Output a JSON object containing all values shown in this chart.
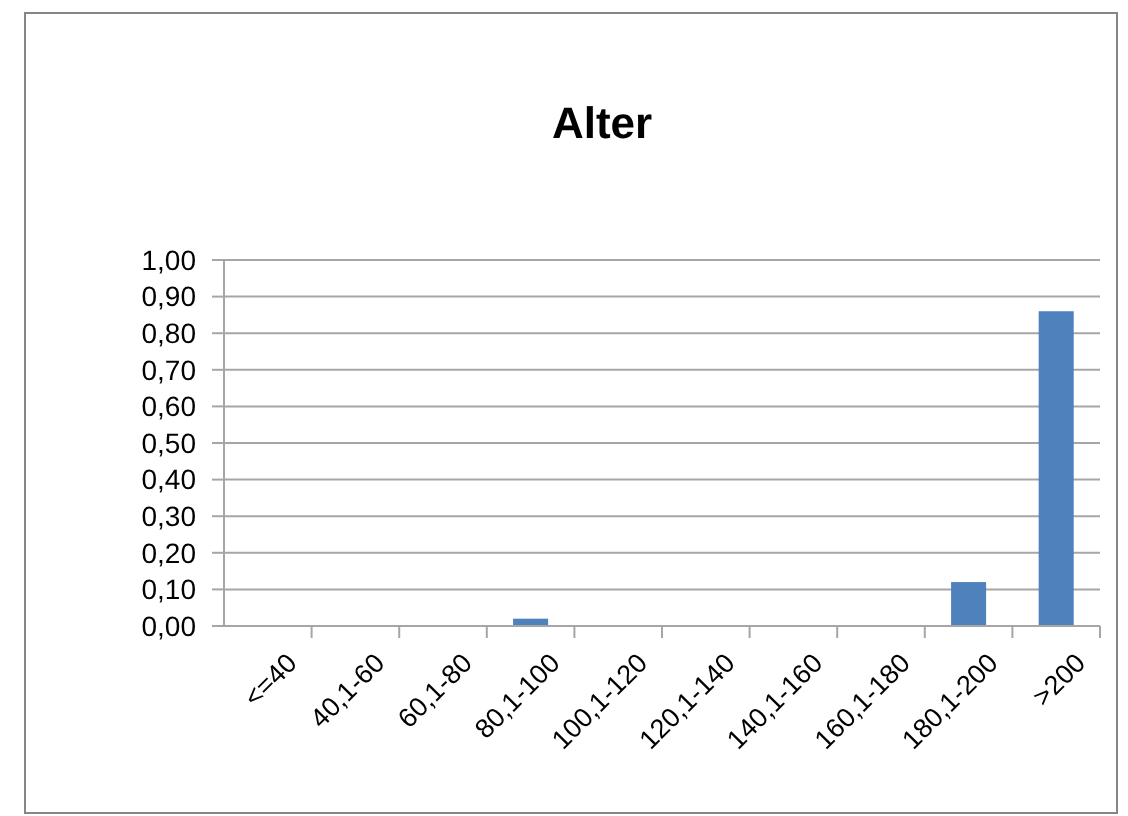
{
  "chart_data": {
    "type": "bar",
    "title": "Alter",
    "categories": [
      "<=40",
      "40,1-60",
      "60,1-80",
      "80,1-100",
      "100,1-120",
      "120,1-140",
      "140,1-160",
      "160,1-180",
      "180,1-200",
      ">200"
    ],
    "values": [
      0,
      0,
      0,
      0.02,
      0,
      0,
      0,
      0,
      0.12,
      0.86
    ],
    "color": "#4f81bd",
    "ylim": [
      0,
      1
    ],
    "yticks": [
      {
        "value": 0,
        "label": "0,00"
      },
      {
        "value": 0.1,
        "label": "0,10"
      },
      {
        "value": 0.2,
        "label": "0,20"
      },
      {
        "value": 0.3,
        "label": "0,30"
      },
      {
        "value": 0.4,
        "label": "0,40"
      },
      {
        "value": 0.5,
        "label": "0,50"
      },
      {
        "value": 0.6,
        "label": "0,60"
      },
      {
        "value": 0.7,
        "label": "0,70"
      },
      {
        "value": 0.8,
        "label": "0,80"
      },
      {
        "value": 0.9,
        "label": "0,90"
      },
      {
        "value": 1,
        "label": "1,00"
      }
    ],
    "grid": "y"
  }
}
